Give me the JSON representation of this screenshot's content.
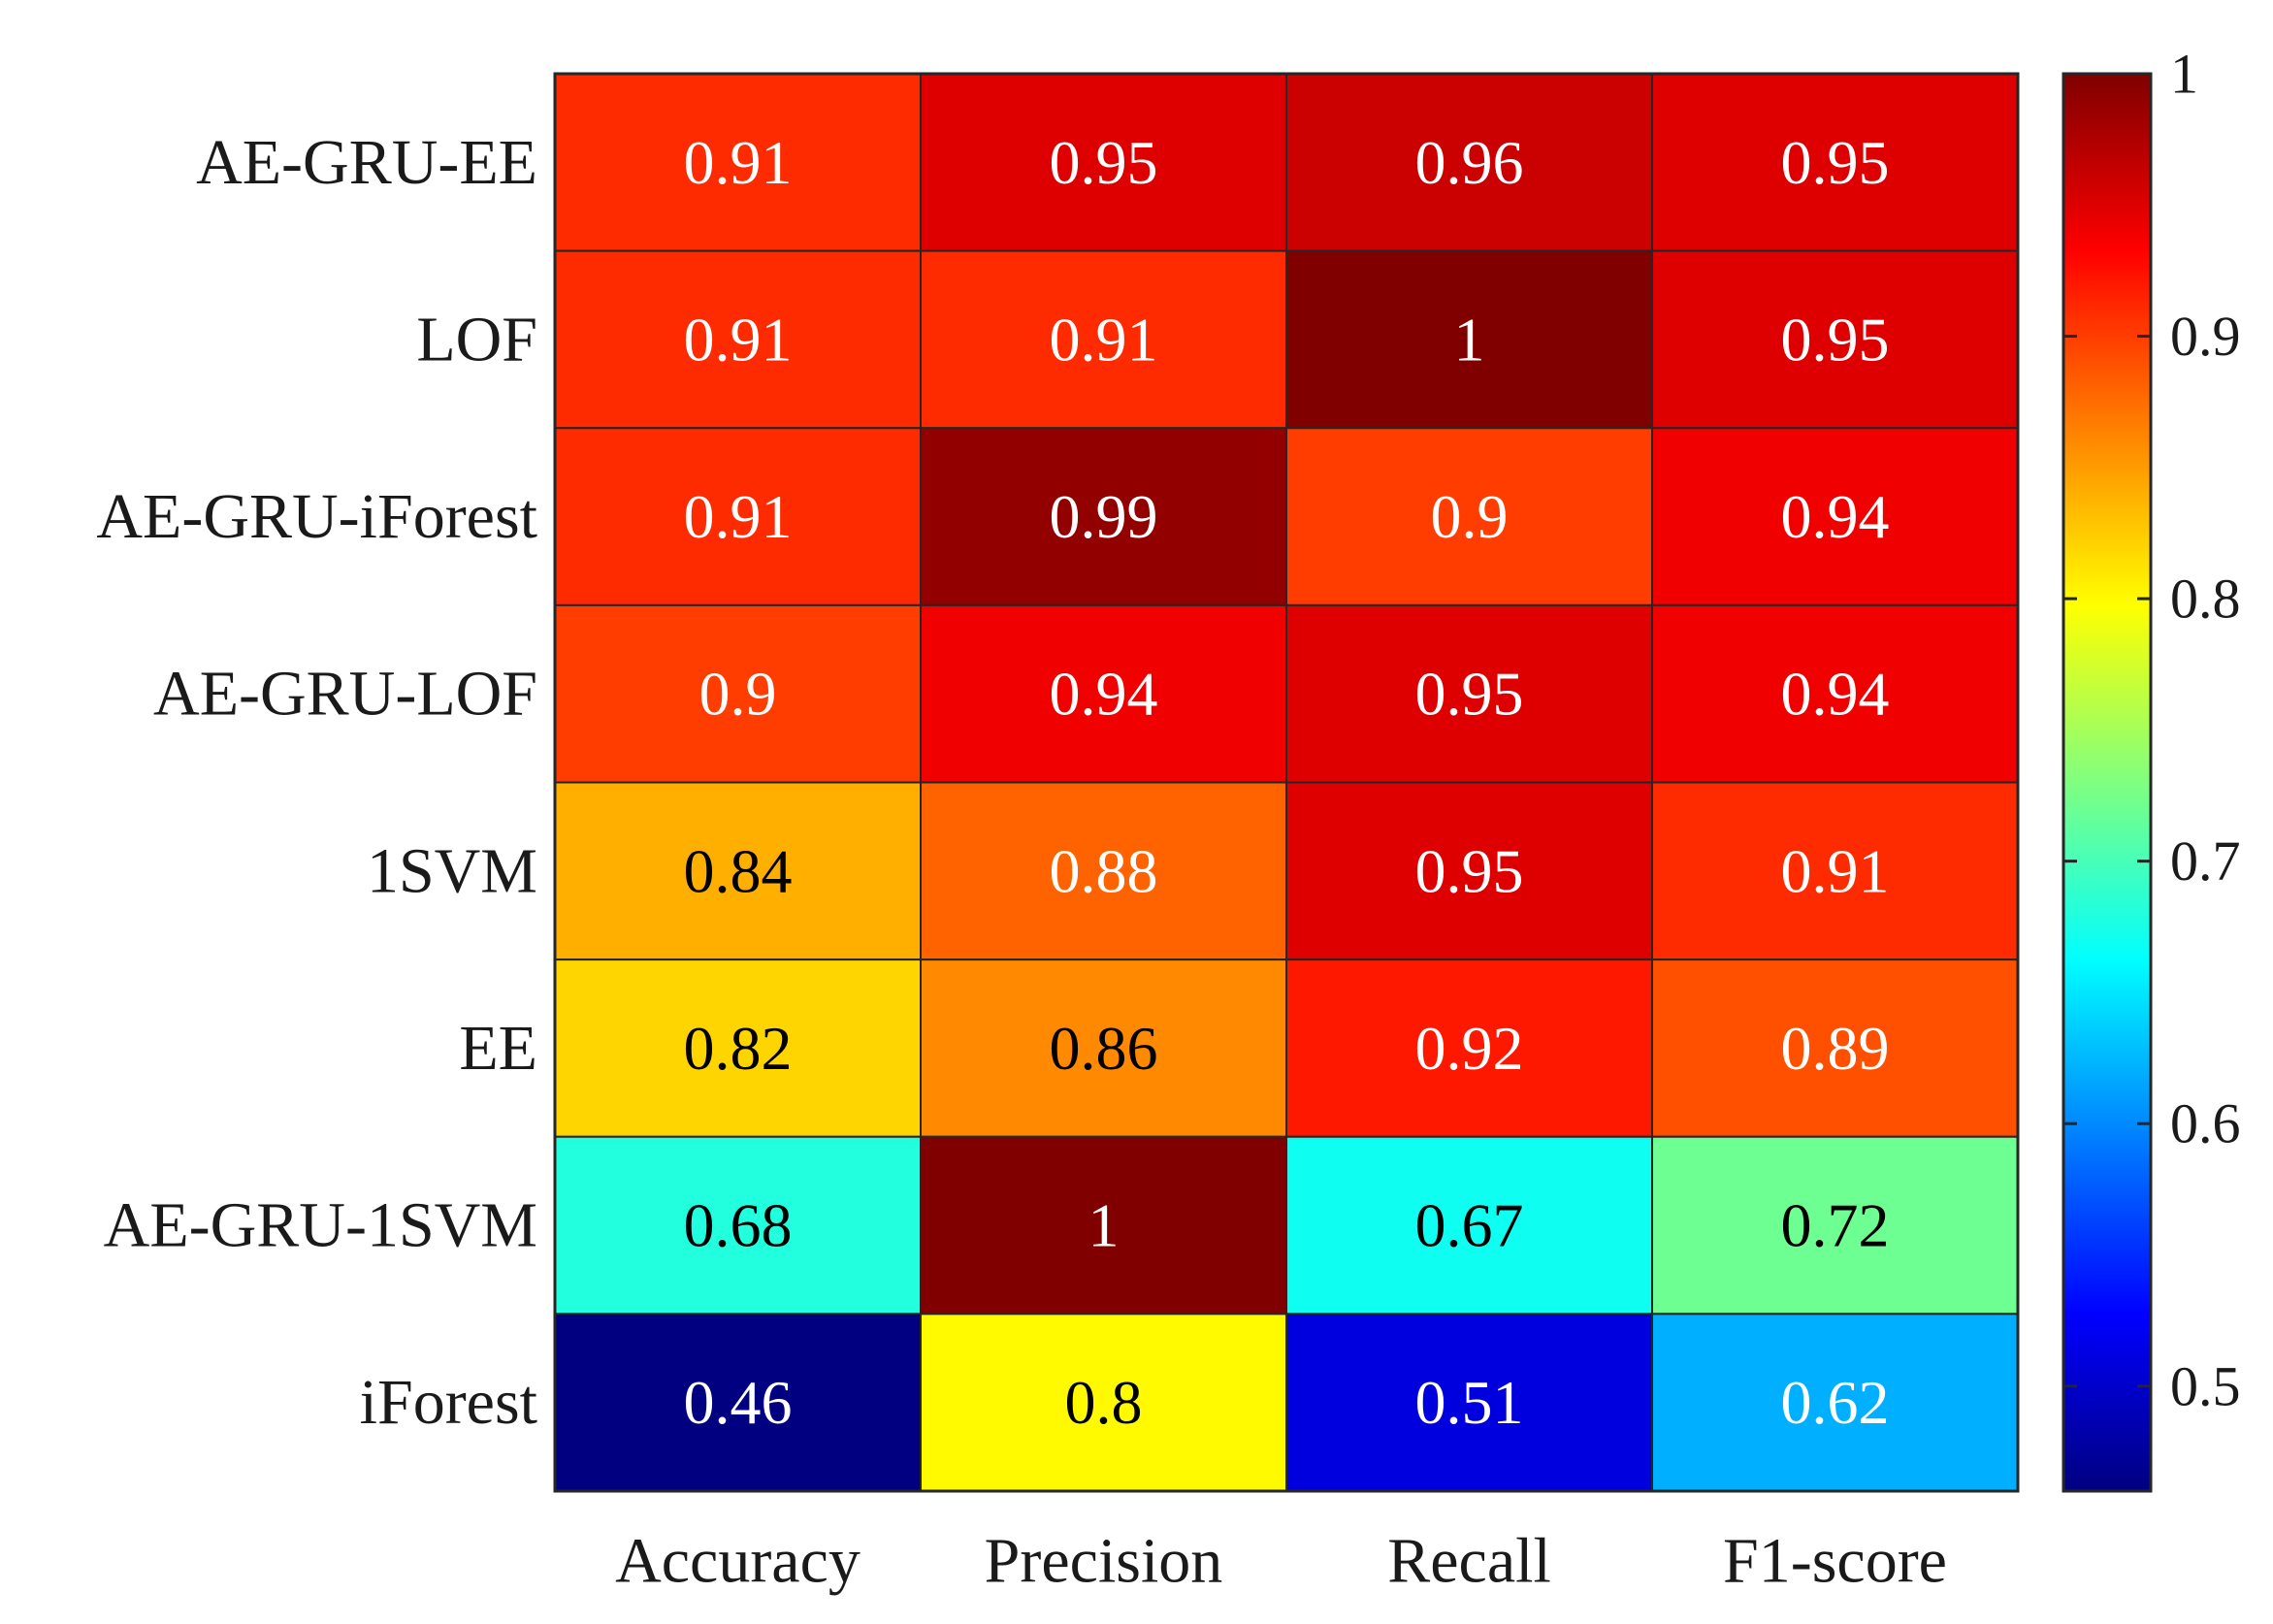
{
  "chart_data": {
    "type": "heatmap",
    "title": "",
    "xlabel": "",
    "ylabel": "",
    "rows": [
      "AE-GRU-EE",
      "LOF",
      "AE-GRU-iForest",
      "AE-GRU-LOF",
      "1SVM",
      "EE",
      "AE-GRU-1SVM",
      "iForest"
    ],
    "columns": [
      "Accuracy",
      "Precision",
      "Recall",
      "F1-score"
    ],
    "values": [
      [
        0.91,
        0.95,
        0.96,
        0.95
      ],
      [
        0.91,
        0.91,
        1,
        0.95
      ],
      [
        0.91,
        0.99,
        0.9,
        0.94
      ],
      [
        0.9,
        0.94,
        0.95,
        0.94
      ],
      [
        0.84,
        0.88,
        0.95,
        0.91
      ],
      [
        0.82,
        0.86,
        0.92,
        0.89
      ],
      [
        0.68,
        1,
        0.67,
        0.72
      ],
      [
        0.46,
        0.8,
        0.51,
        0.62
      ]
    ],
    "colorbar": {
      "colormap": "jet",
      "min": 0.46,
      "max": 1,
      "ticks": [
        0.5,
        0.6,
        0.7,
        0.8,
        0.9,
        1
      ],
      "tick_labels": [
        "0.5",
        "0.6",
        "0.7",
        "0.8",
        "0.9",
        "1"
      ]
    }
  }
}
